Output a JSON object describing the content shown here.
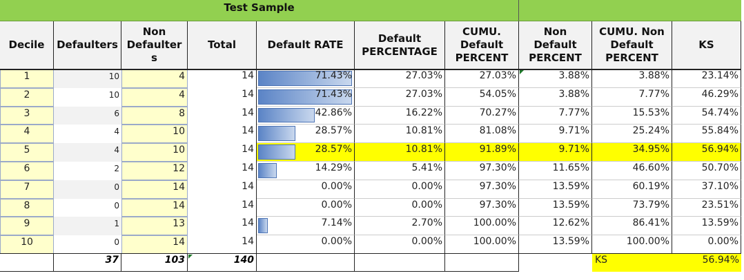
{
  "title": "Test Sample",
  "headers": [
    [
      "Decile"
    ],
    [
      "Defaulters"
    ],
    [
      "Non",
      "Defaulter",
      "s"
    ],
    [
      "Total"
    ],
    [
      "Default RATE"
    ],
    [
      "Default",
      "PERCENTAGE"
    ],
    [
      "CUMU.",
      "Default",
      "PERCENT"
    ],
    [
      "Non",
      "Default",
      "PERCENT"
    ],
    [
      "CUMU. Non",
      "Default",
      "PERCENT"
    ],
    [
      "KS"
    ]
  ],
  "rows": [
    {
      "decile": "1",
      "defaulters": "10",
      "non_defaulters": "4",
      "total": "14",
      "rate": "71.43%",
      "rate_value": 71.43,
      "pct": "27.03%",
      "cum_pct": "27.03%",
      "non_pct": "3.88%",
      "cum_non_pct": "3.88%",
      "ks": "23.14%",
      "highlight": false
    },
    {
      "decile": "2",
      "defaulters": "10",
      "non_defaulters": "4",
      "total": "14",
      "rate": "71.43%",
      "rate_value": 71.43,
      "pct": "27.03%",
      "cum_pct": "54.05%",
      "non_pct": "3.88%",
      "cum_non_pct": "7.77%",
      "ks": "46.29%",
      "highlight": false
    },
    {
      "decile": "3",
      "defaulters": "6",
      "non_defaulters": "8",
      "total": "14",
      "rate": "42.86%",
      "rate_value": 42.86,
      "pct": "16.22%",
      "cum_pct": "70.27%",
      "non_pct": "7.77%",
      "cum_non_pct": "15.53%",
      "ks": "54.74%",
      "highlight": false
    },
    {
      "decile": "4",
      "defaulters": "4",
      "non_defaulters": "10",
      "total": "14",
      "rate": "28.57%",
      "rate_value": 28.57,
      "pct": "10.81%",
      "cum_pct": "81.08%",
      "non_pct": "9.71%",
      "cum_non_pct": "25.24%",
      "ks": "55.84%",
      "highlight": false
    },
    {
      "decile": "5",
      "defaulters": "4",
      "non_defaulters": "10",
      "total": "14",
      "rate": "28.57%",
      "rate_value": 28.57,
      "pct": "10.81%",
      "cum_pct": "91.89%",
      "non_pct": "9.71%",
      "cum_non_pct": "34.95%",
      "ks": "56.94%",
      "highlight": true
    },
    {
      "decile": "6",
      "defaulters": "2",
      "non_defaulters": "12",
      "total": "14",
      "rate": "14.29%",
      "rate_value": 14.29,
      "pct": "5.41%",
      "cum_pct": "97.30%",
      "non_pct": "11.65%",
      "cum_non_pct": "46.60%",
      "ks": "50.70%",
      "highlight": false
    },
    {
      "decile": "7",
      "defaulters": "0",
      "non_defaulters": "14",
      "total": "14",
      "rate": "0.00%",
      "rate_value": 0,
      "pct": "0.00%",
      "cum_pct": "97.30%",
      "non_pct": "13.59%",
      "cum_non_pct": "60.19%",
      "ks": "37.10%",
      "highlight": false
    },
    {
      "decile": "8",
      "defaulters": "0",
      "non_defaulters": "14",
      "total": "14",
      "rate": "0.00%",
      "rate_value": 0,
      "pct": "0.00%",
      "cum_pct": "97.30%",
      "non_pct": "13.59%",
      "cum_non_pct": "73.79%",
      "ks": "23.51%",
      "highlight": false
    },
    {
      "decile": "9",
      "defaulters": "1",
      "non_defaulters": "13",
      "total": "14",
      "rate": "7.14%",
      "rate_value": 7.14,
      "pct": "2.70%",
      "cum_pct": "100.00%",
      "non_pct": "12.62%",
      "cum_non_pct": "86.41%",
      "ks": "13.59%",
      "highlight": false
    },
    {
      "decile": "10",
      "defaulters": "0",
      "non_defaulters": "14",
      "total": "14",
      "rate": "0.00%",
      "rate_value": 0,
      "pct": "0.00%",
      "cum_pct": "100.00%",
      "non_pct": "13.59%",
      "cum_non_pct": "100.00%",
      "ks": "0.00%",
      "highlight": false
    }
  ],
  "totals": {
    "defaulters": "37",
    "non_defaulters": "103",
    "total": "140"
  },
  "ks_summary": {
    "label": "KS",
    "value": "56.94%"
  },
  "colors": {
    "title_green": "#92d050",
    "header_gray": "#f2f2f2",
    "decile_yellow": "#ffffcc",
    "highlight_yellow": "#ffff00",
    "alt_gray": "#f2f2f2",
    "border_blue": "#9aa9c9",
    "bar_blue": "#5b84c6"
  }
}
